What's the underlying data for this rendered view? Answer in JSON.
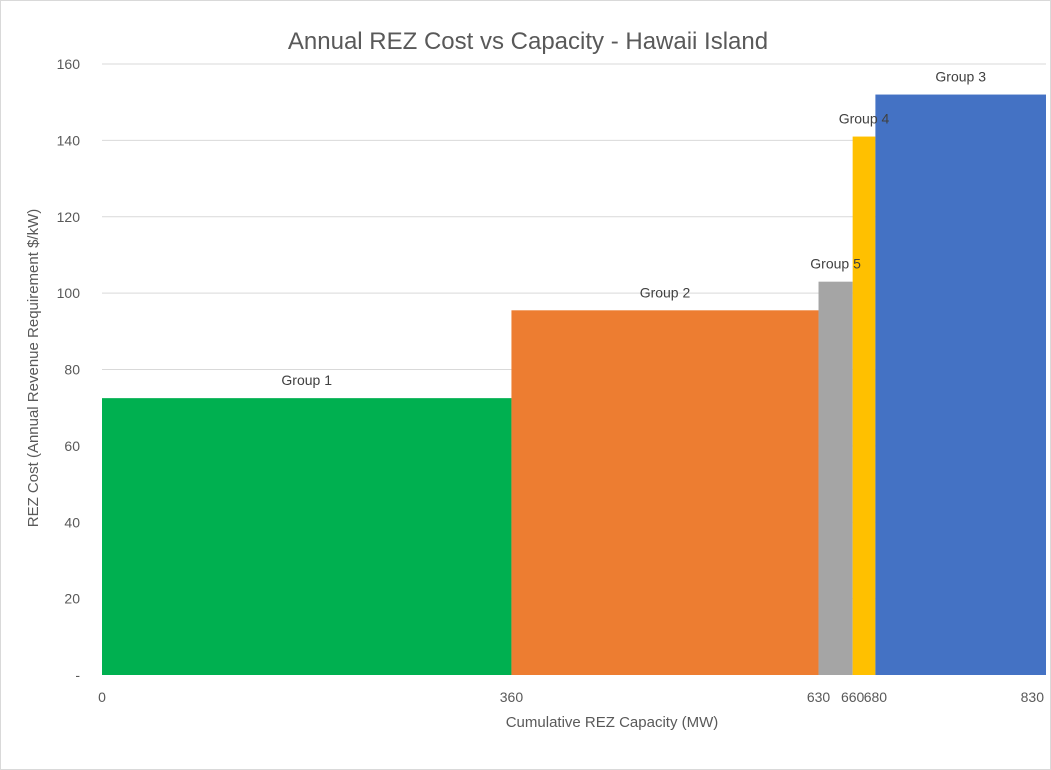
{
  "chart_data": {
    "type": "bar",
    "title": "Annual REZ Cost vs Capacity - Hawaii Island",
    "xlabel": "Cumulative REZ Capacity (MW)",
    "ylabel": "REZ Cost (Annual Revenue Requirement $/kW)",
    "xlim": [
      0,
      830
    ],
    "ylim": [
      0,
      160
    ],
    "y_ticks": [
      "-",
      "20",
      "40",
      "60",
      "80",
      "100",
      "120",
      "140",
      "160"
    ],
    "x_ticks": [
      "0",
      "360",
      "630",
      "660",
      "680",
      "830"
    ],
    "grid": true,
    "bars": [
      {
        "name": "Group 1",
        "x_start": 0,
        "x_end": 360,
        "value": 72.5,
        "color": "#00b050"
      },
      {
        "name": "Group 2",
        "x_start": 360,
        "x_end": 630,
        "value": 95.5,
        "color": "#ed7d31"
      },
      {
        "name": "Group 5",
        "x_start": 630,
        "x_end": 660,
        "value": 103,
        "color": "#a5a5a5"
      },
      {
        "name": "Group 4",
        "x_start": 660,
        "x_end": 680,
        "value": 141,
        "color": "#ffc000"
      },
      {
        "name": "Group 3",
        "x_start": 680,
        "x_end": 830,
        "value": 152,
        "color": "#4472c4"
      }
    ]
  }
}
